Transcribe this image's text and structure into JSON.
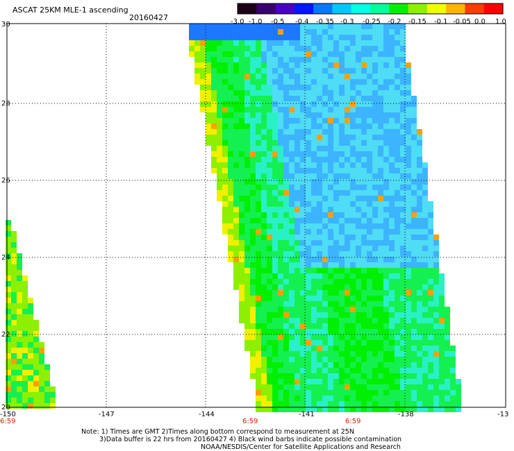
{
  "header": {
    "title": "ASCAT 25KM MLE-1 ascending",
    "date": "20160427"
  },
  "colorbar": {
    "labels": [
      "-3.0",
      "-1.0",
      "-0.5",
      "-0.4",
      "-0.35",
      "-0.3",
      "-0.25",
      "-0.2",
      "-0.15",
      "-0.1",
      "-0.05",
      "0.0",
      "1.0"
    ],
    "colors": [
      "#1c0018",
      "#3a006e",
      "#4a00c8",
      "#0018ff",
      "#0078ff",
      "#00c8ff",
      "#00ffe6",
      "#00ff9a",
      "#00f000",
      "#8cf000",
      "#f0ff00",
      "#ffb400",
      "#ff3c00",
      "#ff0000"
    ]
  },
  "map": {
    "lon_ticks": [
      "-150",
      "-147",
      "-144",
      "-141",
      "-138",
      "-13"
    ],
    "lat_ticks": [
      "30",
      "28",
      "26",
      "24",
      "22",
      "20"
    ],
    "time_labels": [
      "6:59",
      "6:59",
      "6:59"
    ],
    "palette": {
      "blue": "#1e78ff",
      "sky": "#3cb4ff",
      "cyan": "#4fdcf5",
      "teal": "#2af0c8",
      "green": "#14f050",
      "bright_green": "#00f000",
      "lime": "#8cf000",
      "yellow": "#f0f000",
      "orange": "#ffa000"
    }
  },
  "footer": {
    "line1": "Note: 1) Times are GMT 2)Times along bottom correspond to measurement at 25N",
    "line2": "3)Data buffer is 22 hrs from 20160427 4) Black wind barbs indicate possible contamination",
    "line3": "NOAA/NESDIS/Center for Satellite Applications and Research"
  }
}
